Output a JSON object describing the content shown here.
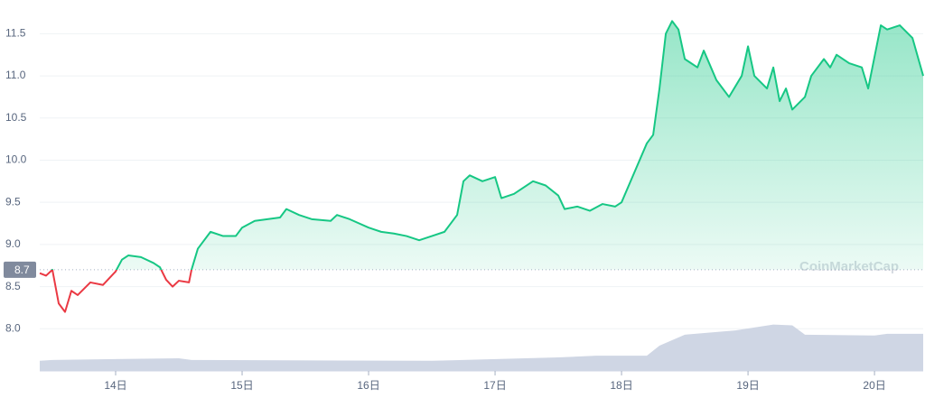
{
  "chart_data": {
    "type": "line",
    "watermark": "CoinMarketCap",
    "baseline": 8.7,
    "xlim": [
      13.4,
      20.385
    ],
    "ylim": [
      7.5,
      11.9
    ],
    "xticks": [
      {
        "value": 14,
        "label": "14日"
      },
      {
        "value": 15,
        "label": "15日"
      },
      {
        "value": 16,
        "label": "16日"
      },
      {
        "value": 17,
        "label": "17日"
      },
      {
        "value": 18,
        "label": "18日"
      },
      {
        "value": 19,
        "label": "19日"
      },
      {
        "value": 20,
        "label": "20日"
      }
    ],
    "yticks": [
      {
        "value": 8,
        "label": "8.0"
      },
      8.5,
      {
        "value": 9,
        "label": "9.0"
      },
      9.5,
      {
        "value": 10,
        "label": "10.0"
      },
      10.5,
      {
        "value": 11,
        "label": "11.0"
      },
      11.5
    ],
    "grid": true,
    "up_color": "#16c784",
    "down_color": "#ea3943",
    "series": [
      {
        "name": null,
        "x": [
          13.4,
          13.45,
          13.5,
          13.55,
          13.6,
          13.65,
          13.7,
          13.8,
          13.9,
          14.0,
          14.05,
          14.1,
          14.2,
          14.3,
          14.35,
          14.4,
          14.45,
          14.5,
          14.58,
          14.6,
          14.65,
          14.75,
          14.85,
          14.95,
          15.0,
          15.1,
          15.2,
          15.3,
          15.35,
          15.45,
          15.55,
          15.7,
          15.75,
          15.85,
          16.0,
          16.1,
          16.2,
          16.3,
          16.4,
          16.5,
          16.6,
          16.7,
          16.75,
          16.8,
          16.9,
          17.0,
          17.05,
          17.15,
          17.3,
          17.4,
          17.5,
          17.55,
          17.65,
          17.75,
          17.85,
          17.95,
          18.0,
          18.1,
          18.2,
          18.25,
          18.3,
          18.35,
          18.4,
          18.45,
          18.5,
          18.6,
          18.65,
          18.75,
          18.85,
          18.95,
          19.0,
          19.05,
          19.15,
          19.2,
          19.25,
          19.3,
          19.35,
          19.45,
          19.5,
          19.6,
          19.65,
          19.7,
          19.8,
          19.9,
          19.95,
          20.05,
          20.1,
          20.2,
          20.3,
          20.385
        ],
        "values": [
          8.66,
          8.63,
          8.7,
          8.3,
          8.2,
          8.45,
          8.4,
          8.55,
          8.52,
          8.68,
          8.82,
          8.87,
          8.85,
          8.78,
          8.73,
          8.58,
          8.5,
          8.57,
          8.55,
          8.7,
          8.95,
          9.15,
          9.1,
          9.1,
          9.2,
          9.28,
          9.3,
          9.32,
          9.42,
          9.35,
          9.3,
          9.28,
          9.35,
          9.3,
          9.2,
          9.15,
          9.13,
          9.1,
          9.05,
          9.1,
          9.15,
          9.35,
          9.75,
          9.82,
          9.75,
          9.8,
          9.55,
          9.6,
          9.75,
          9.7,
          9.58,
          9.42,
          9.45,
          9.4,
          9.48,
          9.45,
          9.5,
          9.85,
          10.2,
          10.3,
          10.85,
          11.5,
          11.65,
          11.55,
          11.2,
          11.1,
          11.3,
          10.95,
          10.75,
          11.0,
          11.35,
          11.0,
          10.85,
          11.1,
          10.7,
          10.85,
          10.6,
          10.75,
          11.0,
          11.2,
          11.1,
          11.25,
          11.15,
          11.1,
          10.85,
          11.6,
          11.55,
          11.6,
          11.45,
          11.0
        ]
      }
    ],
    "volume": {
      "color": "#cfd6e4",
      "x": [
        13.4,
        13.5,
        14.5,
        14.6,
        16.5,
        17.5,
        17.8,
        18.2,
        18.3,
        18.5,
        18.9,
        19.2,
        19.35,
        19.45,
        20.0,
        20.1,
        20.385
      ],
      "values": [
        7.62,
        7.63,
        7.65,
        7.63,
        7.62,
        7.66,
        7.68,
        7.68,
        7.8,
        7.93,
        7.98,
        8.05,
        8.04,
        7.93,
        7.92,
        7.94,
        7.94
      ]
    }
  }
}
